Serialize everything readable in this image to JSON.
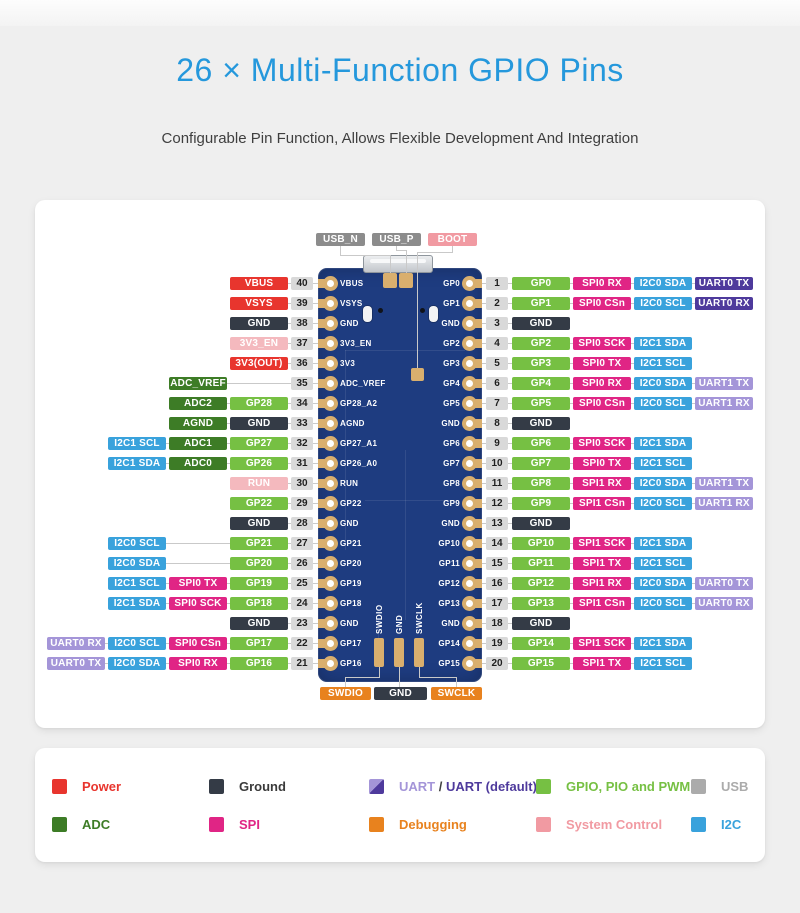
{
  "header": {
    "title": "26 × Multi-Function GPIO Pins",
    "subtitle": "Configurable Pin Function, Allows Flexible Development And Integration"
  },
  "colors": {
    "title_blue": "#2598dc",
    "power": "#e8352e",
    "ground": "#343b46",
    "sysctl": "#f4b9be",
    "sysctl_strong": "#f19aa2",
    "gpio": "#76c043",
    "adc": "#3d7c26",
    "spi": "#e02585",
    "i2c": "#39a2dc",
    "uart": "#a495d8",
    "uart_default": "#4e3a9c",
    "usb": "#8c8c8c",
    "usb_legend": "#ababab",
    "debug": "#e8821e",
    "pin_num_bg": "#d9d9d9",
    "board": "#1e3c80",
    "pad_gold": "#d9af6e",
    "line": "#c9c9c9"
  },
  "diagram": {
    "top_pads": [
      {
        "label": "USB_N",
        "type": "usb"
      },
      {
        "label": "USB_P",
        "type": "usb"
      },
      {
        "label": "BOOT",
        "type": "sysctl_strong"
      }
    ],
    "bottom_pads": [
      {
        "label": "SWDIO",
        "type": "debug"
      },
      {
        "label": "GND",
        "type": "ground"
      },
      {
        "label": "SWCLK",
        "type": "debug"
      }
    ],
    "board_silk": {
      "left": [
        "VBUS",
        "VSYS",
        "GND",
        "3V3_EN",
        "3V3",
        "ADC_VREF",
        "GP28_A2",
        "AGND",
        "GP27_A1",
        "GP26_A0",
        "RUN",
        "GP22",
        "GND",
        "GP21",
        "GP20",
        "GP19",
        "GP18",
        "GND",
        "GP17",
        "GP16"
      ],
      "right": [
        "GP0",
        "GP1",
        "GND",
        "GP2",
        "GP3",
        "GP4",
        "GP5",
        "GND",
        "GP6",
        "GP7",
        "GP8",
        "GP9",
        "GND",
        "GP10",
        "GP11",
        "GP12",
        "GP13",
        "GND",
        "GP14",
        "GP15"
      ],
      "bottom_vertical": [
        "SWDIO",
        "GND",
        "SWCLK"
      ]
    },
    "pins_left": [
      {
        "num": 40,
        "chips": [
          {
            "label": "VBUS",
            "type": "power"
          }
        ]
      },
      {
        "num": 39,
        "chips": [
          {
            "label": "VSYS",
            "type": "power"
          }
        ]
      },
      {
        "num": 38,
        "chips": [
          {
            "label": "GND",
            "type": "ground"
          }
        ]
      },
      {
        "num": 37,
        "chips": [
          {
            "label": "3V3_EN",
            "type": "sysctl"
          }
        ]
      },
      {
        "num": 36,
        "chips": [
          {
            "label": "3V3(OUT)",
            "type": "power"
          }
        ]
      },
      {
        "num": 35,
        "chips": [
          {
            "label": "ADC_VREF",
            "type": "adc",
            "col": 1
          }
        ]
      },
      {
        "num": 34,
        "chips": [
          {
            "label": "GP28",
            "type": "gpio"
          },
          {
            "label": "ADC2",
            "type": "adc"
          }
        ]
      },
      {
        "num": 33,
        "chips": [
          {
            "label": "GND",
            "type": "ground"
          },
          {
            "label": "AGND",
            "type": "adc"
          }
        ]
      },
      {
        "num": 32,
        "chips": [
          {
            "label": "GP27",
            "type": "gpio"
          },
          {
            "label": "ADC1",
            "type": "adc"
          },
          {
            "label": "I2C1 SCL",
            "type": "i2c"
          }
        ]
      },
      {
        "num": 31,
        "chips": [
          {
            "label": "GP26",
            "type": "gpio"
          },
          {
            "label": "ADC0",
            "type": "adc"
          },
          {
            "label": "I2C1 SDA",
            "type": "i2c"
          }
        ]
      },
      {
        "num": 30,
        "chips": [
          {
            "label": "RUN",
            "type": "sysctl"
          }
        ]
      },
      {
        "num": 29,
        "chips": [
          {
            "label": "GP22",
            "type": "gpio"
          }
        ]
      },
      {
        "num": 28,
        "chips": [
          {
            "label": "GND",
            "type": "ground"
          }
        ]
      },
      {
        "num": 27,
        "chips": [
          {
            "label": "GP21",
            "type": "gpio"
          },
          {
            "label": "I2C0 SCL",
            "type": "i2c",
            "col": 2
          }
        ]
      },
      {
        "num": 26,
        "chips": [
          {
            "label": "GP20",
            "type": "gpio"
          },
          {
            "label": "I2C0 SDA",
            "type": "i2c",
            "col": 2
          }
        ]
      },
      {
        "num": 25,
        "chips": [
          {
            "label": "GP19",
            "type": "gpio"
          },
          {
            "label": "SPI0 TX",
            "type": "spi"
          },
          {
            "label": "I2C1 SCL",
            "type": "i2c"
          }
        ]
      },
      {
        "num": 24,
        "chips": [
          {
            "label": "GP18",
            "type": "gpio"
          },
          {
            "label": "SPI0 SCK",
            "type": "spi"
          },
          {
            "label": "I2C1 SDA",
            "type": "i2c"
          }
        ]
      },
      {
        "num": 23,
        "chips": [
          {
            "label": "GND",
            "type": "ground"
          }
        ]
      },
      {
        "num": 22,
        "chips": [
          {
            "label": "GP17",
            "type": "gpio"
          },
          {
            "label": "SPI0 CSn",
            "type": "spi"
          },
          {
            "label": "I2C0 SCL",
            "type": "i2c"
          },
          {
            "label": "UART0 RX",
            "type": "uart"
          }
        ]
      },
      {
        "num": 21,
        "chips": [
          {
            "label": "GP16",
            "type": "gpio"
          },
          {
            "label": "SPI0 RX",
            "type": "spi"
          },
          {
            "label": "I2C0 SDA",
            "type": "i2c"
          },
          {
            "label": "UART0 TX",
            "type": "uart"
          }
        ]
      }
    ],
    "pins_right": [
      {
        "num": 1,
        "chips": [
          {
            "label": "GP0",
            "type": "gpio"
          },
          {
            "label": "SPI0 RX",
            "type": "spi"
          },
          {
            "label": "I2C0 SDA",
            "type": "i2c"
          },
          {
            "label": "UART0 TX",
            "type": "uart_default"
          }
        ]
      },
      {
        "num": 2,
        "chips": [
          {
            "label": "GP1",
            "type": "gpio"
          },
          {
            "label": "SPI0 CSn",
            "type": "spi"
          },
          {
            "label": "I2C0 SCL",
            "type": "i2c"
          },
          {
            "label": "UART0 RX",
            "type": "uart_default"
          }
        ]
      },
      {
        "num": 3,
        "chips": [
          {
            "label": "GND",
            "type": "ground"
          }
        ]
      },
      {
        "num": 4,
        "chips": [
          {
            "label": "GP2",
            "type": "gpio"
          },
          {
            "label": "SPI0 SCK",
            "type": "spi"
          },
          {
            "label": "I2C1 SDA",
            "type": "i2c"
          }
        ]
      },
      {
        "num": 5,
        "chips": [
          {
            "label": "GP3",
            "type": "gpio"
          },
          {
            "label": "SPI0 TX",
            "type": "spi"
          },
          {
            "label": "I2C1 SCL",
            "type": "i2c"
          }
        ]
      },
      {
        "num": 6,
        "chips": [
          {
            "label": "GP4",
            "type": "gpio"
          },
          {
            "label": "SPI0 RX",
            "type": "spi"
          },
          {
            "label": "I2C0 SDA",
            "type": "i2c"
          },
          {
            "label": "UART1 TX",
            "type": "uart"
          }
        ]
      },
      {
        "num": 7,
        "chips": [
          {
            "label": "GP5",
            "type": "gpio"
          },
          {
            "label": "SPI0 CSn",
            "type": "spi"
          },
          {
            "label": "I2C0 SCL",
            "type": "i2c"
          },
          {
            "label": "UART1 RX",
            "type": "uart"
          }
        ]
      },
      {
        "num": 8,
        "chips": [
          {
            "label": "GND",
            "type": "ground"
          }
        ]
      },
      {
        "num": 9,
        "chips": [
          {
            "label": "GP6",
            "type": "gpio"
          },
          {
            "label": "SPI0 SCK",
            "type": "spi"
          },
          {
            "label": "I2C1 SDA",
            "type": "i2c"
          }
        ]
      },
      {
        "num": 10,
        "chips": [
          {
            "label": "GP7",
            "type": "gpio"
          },
          {
            "label": "SPI0 TX",
            "type": "spi"
          },
          {
            "label": "I2C1 SCL",
            "type": "i2c"
          }
        ]
      },
      {
        "num": 11,
        "chips": [
          {
            "label": "GP8",
            "type": "gpio"
          },
          {
            "label": "SPI1 RX",
            "type": "spi"
          },
          {
            "label": "I2C0 SDA",
            "type": "i2c"
          },
          {
            "label": "UART1 TX",
            "type": "uart"
          }
        ]
      },
      {
        "num": 12,
        "chips": [
          {
            "label": "GP9",
            "type": "gpio"
          },
          {
            "label": "SPI1 CSn",
            "type": "spi"
          },
          {
            "label": "I2C0 SCL",
            "type": "i2c"
          },
          {
            "label": "UART1 RX",
            "type": "uart"
          }
        ]
      },
      {
        "num": 13,
        "chips": [
          {
            "label": "GND",
            "type": "ground"
          }
        ]
      },
      {
        "num": 14,
        "chips": [
          {
            "label": "GP10",
            "type": "gpio"
          },
          {
            "label": "SPI1 SCK",
            "type": "spi"
          },
          {
            "label": "I2C1 SDA",
            "type": "i2c"
          }
        ]
      },
      {
        "num": 15,
        "chips": [
          {
            "label": "GP11",
            "type": "gpio"
          },
          {
            "label": "SPI1 TX",
            "type": "spi"
          },
          {
            "label": "I2C1 SCL",
            "type": "i2c"
          }
        ]
      },
      {
        "num": 16,
        "chips": [
          {
            "label": "GP12",
            "type": "gpio"
          },
          {
            "label": "SPI1 RX",
            "type": "spi"
          },
          {
            "label": "I2C0 SDA",
            "type": "i2c"
          },
          {
            "label": "UART0 TX",
            "type": "uart"
          }
        ]
      },
      {
        "num": 17,
        "chips": [
          {
            "label": "GP13",
            "type": "gpio"
          },
          {
            "label": "SPI1 CSn",
            "type": "spi"
          },
          {
            "label": "I2C0 SCL",
            "type": "i2c"
          },
          {
            "label": "UART0 RX",
            "type": "uart"
          }
        ]
      },
      {
        "num": 18,
        "chips": [
          {
            "label": "GND",
            "type": "ground"
          }
        ]
      },
      {
        "num": 19,
        "chips": [
          {
            "label": "GP14",
            "type": "gpio"
          },
          {
            "label": "SPI1 SCK",
            "type": "spi"
          },
          {
            "label": "I2C1 SDA",
            "type": "i2c"
          }
        ]
      },
      {
        "num": 20,
        "chips": [
          {
            "label": "GP15",
            "type": "gpio"
          },
          {
            "label": "SPI1 TX",
            "type": "spi"
          },
          {
            "label": "I2C1 SCL",
            "type": "i2c"
          }
        ]
      }
    ]
  },
  "legend": {
    "rows": [
      [
        {
          "label": "Power",
          "type": "power"
        },
        {
          "label": "Ground",
          "type": "ground"
        },
        {
          "swatch": "uart_split",
          "parts": [
            {
              "label": "UART",
              "type": "uart"
            },
            {
              "label": " / ",
              "type": "plain"
            },
            {
              "label": "UART (default)",
              "type": "uart_default"
            }
          ]
        },
        {
          "label": "GPIO, PIO and PWM",
          "type": "gpio"
        },
        {
          "label": "USB",
          "type": "usb_legend"
        }
      ],
      [
        {
          "label": "ADC",
          "type": "adc"
        },
        {
          "label": "SPI",
          "type": "spi"
        },
        {
          "label": "Debugging",
          "type": "debug"
        },
        {
          "label": "System Control",
          "type": "sysctl_strong"
        },
        {
          "label": "I2C",
          "type": "i2c"
        }
      ]
    ]
  }
}
